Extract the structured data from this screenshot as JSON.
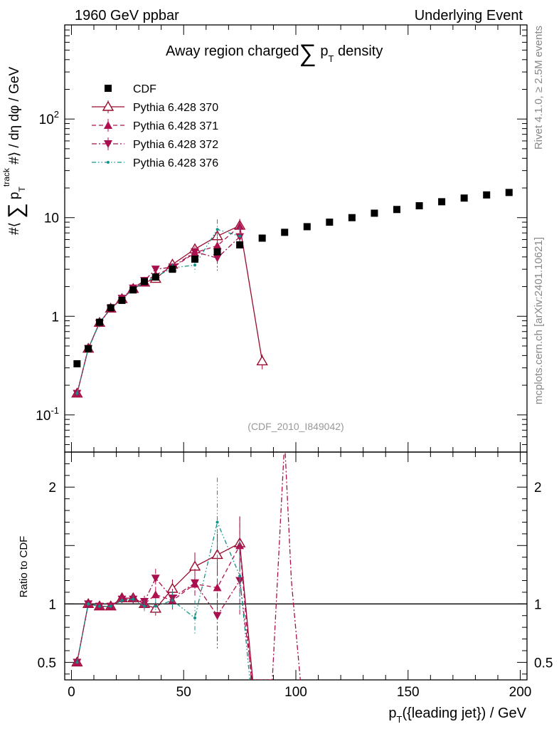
{
  "header": {
    "left": "1960 GeV ppbar",
    "right": "Underlying Event"
  },
  "side_labels": {
    "rivet": "Rivet 4.1.0, ≥ 2.5M events",
    "mcplots": "mcplots.cern.ch [arXiv:2401.10621]"
  },
  "chart_data": {
    "type": "line",
    "title": "Away region charged∑ p_T density",
    "analysis_id": "(CDF_2010_I849042)",
    "xlabel": "p_T({leading jet}) / GeV",
    "ylabel": "#⟨ ∑ p_T^track #⟩ / dη dφ / GeV",
    "xlim": [
      -3,
      203
    ],
    "ylim": [
      0.042,
      900
    ],
    "yscale": "log",
    "x_ticks": [
      0,
      50,
      100,
      150,
      200
    ],
    "x_tick_labels": [
      "0",
      "50",
      "100",
      "150",
      "200"
    ],
    "y_tick_labels": [
      "10^-1",
      "1",
      "10",
      "10^2"
    ],
    "legend": [
      {
        "label": "CDF",
        "color": "#000000",
        "style": "solid",
        "marker": "square"
      },
      {
        "label": "Pythia 6.428 370",
        "color": "#9a0a2e",
        "style": "solid",
        "marker": "triangle-up-open"
      },
      {
        "label": "Pythia 6.428 371",
        "color": "#b0104f",
        "style": "dashed",
        "marker": "triangle-up"
      },
      {
        "label": "Pythia 6.428 372",
        "color": "#a80f4e",
        "style": "dashdot",
        "marker": "triangle-down"
      },
      {
        "label": "Pythia 6.428 376",
        "color": "#12938a",
        "style": "dashdotdot",
        "marker": "dot"
      }
    ],
    "series": [
      {
        "name": "CDF",
        "marker": "square",
        "x": [
          2.5,
          7.5,
          12.5,
          17.5,
          22.5,
          27.5,
          32.5,
          37.5,
          45,
          55,
          65,
          75,
          85,
          95,
          105,
          115,
          125,
          135,
          145,
          155,
          165,
          175,
          185,
          195
        ],
        "y": [
          0.33,
          0.47,
          0.87,
          1.22,
          1.45,
          1.85,
          2.25,
          2.5,
          3.0,
          3.8,
          4.5,
          5.3,
          6.2,
          7.1,
          8.1,
          9.0,
          10.0,
          11.1,
          12.1,
          13.2,
          14.5,
          15.8,
          17.0,
          18.0
        ]
      },
      {
        "name": "Pythia 6.428 370",
        "marker": "triangle-up-open",
        "x": [
          2.5,
          7.5,
          12.5,
          17.5,
          22.5,
          27.5,
          32.5,
          37.5,
          45,
          55,
          65,
          75,
          85
        ],
        "y": [
          0.165,
          0.47,
          0.86,
          1.2,
          1.5,
          1.9,
          2.2,
          2.4,
          3.35,
          4.8,
          6.5,
          8.3,
          0.35
        ],
        "yerr": [
          0.01,
          0.02,
          0.03,
          0.04,
          0.05,
          0.07,
          0.1,
          0.15,
          0.3,
          0.6,
          1.0,
          1.4,
          0.06
        ]
      },
      {
        "name": "Pythia 6.428 371",
        "marker": "triangle-up",
        "x": [
          2.5,
          7.5,
          12.5,
          17.5,
          22.5,
          27.5,
          32.5,
          37.5,
          45,
          55,
          65,
          75
        ],
        "y": [
          0.165,
          0.47,
          0.86,
          1.2,
          1.5,
          1.9,
          2.2,
          2.65,
          3.1,
          4.4,
          5.2,
          8.2
        ],
        "yerr": [
          0.01,
          0.02,
          0.03,
          0.04,
          0.05,
          0.07,
          0.1,
          0.2,
          0.3,
          0.6,
          1.2,
          1.5
        ]
      },
      {
        "name": "Pythia 6.428 372",
        "marker": "triangle-down",
        "x": [
          2.5,
          7.5,
          12.5,
          17.5,
          22.5,
          27.5,
          32.5,
          37.5,
          45,
          55,
          65,
          75
        ],
        "y": [
          0.165,
          0.47,
          0.85,
          1.2,
          1.52,
          1.93,
          2.3,
          3.0,
          3.15,
          4.5,
          3.9,
          6.4
        ],
        "yerr": [
          0.01,
          0.02,
          0.03,
          0.04,
          0.05,
          0.07,
          0.1,
          0.2,
          0.3,
          0.6,
          1.0,
          1.5
        ]
      },
      {
        "name": "Pythia 6.428 376",
        "marker": "dot",
        "x": [
          2.5,
          7.5,
          12.5,
          17.5,
          22.5,
          27.5,
          32.5,
          37.5,
          45,
          55,
          65,
          75
        ],
        "y": [
          0.165,
          0.47,
          0.86,
          1.2,
          1.48,
          1.88,
          2.2,
          2.5,
          3.1,
          3.3,
          7.6,
          6.5
        ],
        "yerr": [
          0.01,
          0.02,
          0.03,
          0.04,
          0.05,
          0.07,
          0.1,
          0.2,
          0.3,
          0.5,
          2.0,
          1.6
        ]
      }
    ],
    "ratio": {
      "ylabel": "Ratio to CDF",
      "ylim": [
        0.35,
        2.3
      ],
      "y_ticks": [
        0.5,
        1,
        2
      ],
      "y_tick_labels": [
        "0.5",
        "1",
        "2"
      ],
      "series": [
        {
          "name": "Pythia 6.428 370",
          "x": [
            2.5,
            7.5,
            12.5,
            17.5,
            22.5,
            27.5,
            32.5,
            37.5,
            45,
            55,
            65,
            75,
            80.8
          ],
          "y": [
            0.5,
            1.0,
            0.98,
            0.98,
            1.05,
            1.05,
            1.0,
            0.96,
            1.13,
            1.32,
            1.42,
            1.52,
            0.35
          ],
          "yerr": [
            0.01,
            0.02,
            0.02,
            0.02,
            0.03,
            0.04,
            0.05,
            0.06,
            0.08,
            0.12,
            0.18,
            0.22,
            0
          ]
        },
        {
          "name": "Pythia 6.428 371",
          "x": [
            2.5,
            7.5,
            12.5,
            17.5,
            22.5,
            27.5,
            32.5,
            37.5,
            45,
            55,
            65,
            75,
            80.2
          ],
          "y": [
            0.5,
            1.0,
            0.98,
            0.98,
            1.05,
            1.05,
            1.0,
            1.08,
            1.03,
            1.17,
            1.14,
            1.5,
            0.35
          ],
          "yerr": [
            0.01,
            0.02,
            0.02,
            0.02,
            0.03,
            0.04,
            0.05,
            0.06,
            0.08,
            0.12,
            0.2,
            0.25,
            0
          ]
        },
        {
          "name": "Pythia 6.428 372",
          "x": [
            2.5,
            7.5,
            12.5,
            17.5,
            22.5,
            27.5,
            32.5,
            37.5,
            45,
            55,
            65,
            75,
            80.5,
            89.5,
            95,
            98,
            102
          ],
          "y": [
            0.5,
            1.0,
            0.98,
            0.98,
            1.04,
            1.04,
            1.02,
            1.22,
            1.05,
            1.18,
            0.9,
            1.2,
            0.35,
            0.35,
            2.4,
            1.2,
            0.35
          ],
          "yerr": [
            0.01,
            0.02,
            0.02,
            0.02,
            0.03,
            0.04,
            0.05,
            0.08,
            0.08,
            0.12,
            0.28,
            0.3,
            0,
            0,
            0,
            0,
            0
          ]
        },
        {
          "name": "Pythia 6.428 376",
          "x": [
            2.5,
            7.5,
            12.5,
            17.5,
            22.5,
            27.5,
            32.5,
            37.5,
            45,
            55,
            65,
            75,
            79.5
          ],
          "y": [
            0.5,
            1.0,
            0.98,
            0.98,
            1.03,
            1.04,
            0.98,
            0.98,
            1.03,
            0.88,
            1.7,
            1.24,
            0.35
          ],
          "yerr": [
            0.01,
            0.02,
            0.02,
            0.02,
            0.03,
            0.04,
            0.05,
            0.06,
            0.08,
            0.15,
            0.38,
            0.3,
            0
          ]
        }
      ]
    }
  }
}
